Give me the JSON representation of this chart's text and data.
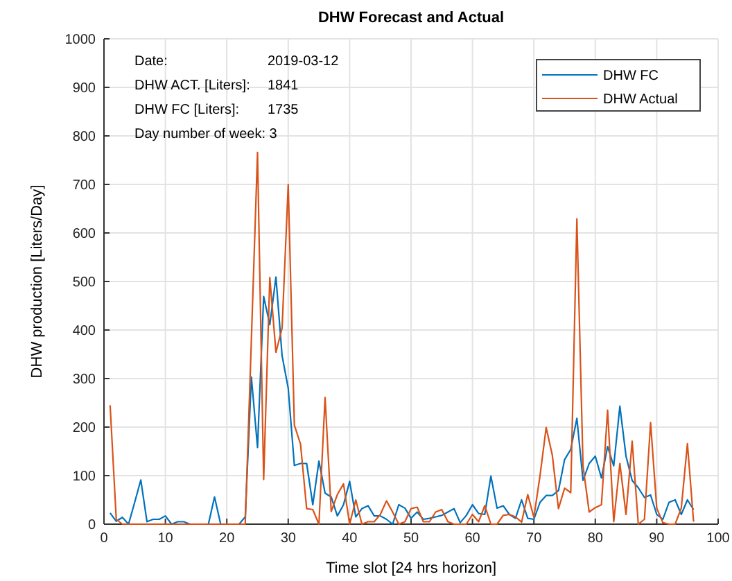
{
  "chart_data": {
    "type": "line",
    "title": "DHW Forecast and Actual",
    "xlabel": "Time slot [24 hrs horizon]",
    "ylabel": "DHW production [Liters/Day]",
    "annotations": [
      "Date:\t2019-03-12",
      "DHW ACT. [Liters]:\t1841",
      "DHW FC [Liters]:\t1735",
      "Day number of week: 3"
    ],
    "x": [
      1,
      2,
      3,
      4,
      5,
      6,
      7,
      8,
      9,
      10,
      11,
      12,
      13,
      14,
      15,
      16,
      17,
      18,
      19,
      20,
      21,
      22,
      23,
      24,
      25,
      26,
      27,
      28,
      29,
      30,
      31,
      32,
      33,
      34,
      35,
      36,
      37,
      38,
      39,
      40,
      41,
      42,
      43,
      44,
      45,
      46,
      47,
      48,
      49,
      50,
      51,
      52,
      53,
      54,
      55,
      56,
      57,
      58,
      59,
      60,
      61,
      62,
      63,
      64,
      65,
      66,
      67,
      68,
      69,
      70,
      71,
      72,
      73,
      74,
      75,
      76,
      77,
      78,
      79,
      80,
      81,
      82,
      83,
      84,
      85,
      86,
      87,
      88,
      89,
      90,
      91,
      92,
      93,
      94,
      95,
      96
    ],
    "series": [
      {
        "name": "DHW FC",
        "color": "#0072bd",
        "values": [
          23,
          6,
          14,
          0,
          45,
          91,
          5,
          10,
          10,
          17,
          0,
          5,
          5,
          0,
          0,
          0,
          0,
          56,
          0,
          0,
          0,
          0,
          15,
          303,
          158,
          469,
          411,
          509,
          347,
          280,
          121,
          125,
          125,
          40,
          130,
          64,
          56,
          17,
          40,
          88,
          15,
          32,
          38,
          17,
          17,
          10,
          0,
          40,
          33,
          12,
          25,
          10,
          12,
          15,
          18,
          25,
          32,
          3,
          18,
          40,
          22,
          20,
          99,
          33,
          38,
          20,
          12,
          50,
          12,
          10,
          45,
          59,
          59,
          69,
          133,
          154,
          218,
          90,
          125,
          140,
          95,
          160,
          120,
          243,
          140,
          90,
          75,
          55,
          60,
          20,
          10,
          45,
          50,
          20,
          50,
          30
        ]
      },
      {
        "name": "DHW Actual",
        "color": "#d95319",
        "values": [
          245,
          10,
          0,
          0,
          0,
          0,
          0,
          0,
          0,
          0,
          0,
          0,
          0,
          0,
          0,
          0,
          0,
          0,
          0,
          0,
          0,
          0,
          0,
          380,
          766,
          92,
          508,
          354,
          404,
          700,
          204,
          165,
          32,
          30,
          0,
          261,
          26,
          61,
          83,
          0,
          50,
          0,
          5,
          5,
          20,
          48,
          25,
          0,
          5,
          32,
          35,
          5,
          5,
          25,
          30,
          5,
          0,
          0,
          0,
          20,
          5,
          38,
          0,
          0,
          18,
          20,
          15,
          4,
          61,
          14,
          100,
          199,
          142,
          32,
          74,
          65,
          629,
          120,
          25,
          34,
          40,
          235,
          5,
          125,
          20,
          171,
          0,
          10,
          209,
          33,
          3,
          0,
          0,
          33,
          166,
          5
        ]
      }
    ],
    "xlim": [
      0,
      100
    ],
    "xticks": [
      0,
      10,
      20,
      30,
      40,
      50,
      60,
      70,
      80,
      90,
      100
    ],
    "ylim": [
      0,
      1000
    ],
    "yticks": [
      0,
      100,
      200,
      300,
      400,
      500,
      600,
      700,
      800,
      900,
      1000
    ],
    "grid": true,
    "legend": "top right",
    "marker": "none",
    "line_style": "solid"
  }
}
